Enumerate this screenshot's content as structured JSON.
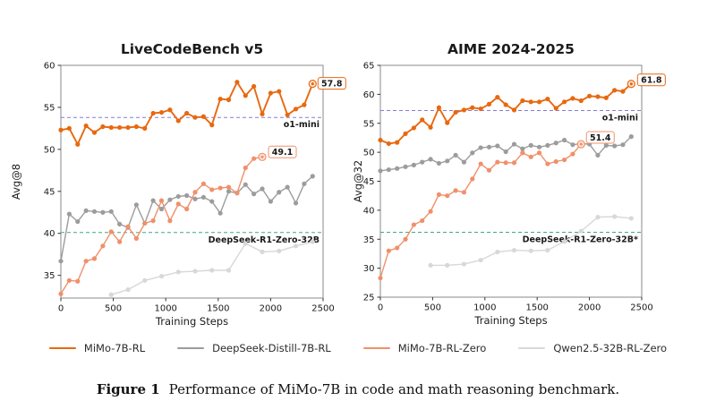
{
  "figure": {
    "caption_label": "Figure 1",
    "caption_text": "Performance of MiMo-7B in code and math reasoning benchmark."
  },
  "legend": {
    "items": [
      {
        "label": "MiMo-7B-RL",
        "color": "#e8680f"
      },
      {
        "label": "DeepSeek-Distill-7B-RL",
        "color": "#9c9c9c"
      },
      {
        "label": "MiMo-7B-RL-Zero",
        "color": "#f0906a"
      },
      {
        "label": "Qwen2.5-32B-RL-Zero",
        "color": "#d8d8d8"
      }
    ]
  },
  "chart_data": [
    {
      "id": "livecodebench",
      "type": "line",
      "title": "LiveCodeBench v5",
      "xlabel": "Training Steps",
      "ylabel": "Avg@8",
      "xlim": [
        0,
        2500
      ],
      "ylim": [
        32.3,
        60
      ],
      "xticks": [
        0,
        500,
        1000,
        1500,
        2000,
        2500
      ],
      "yticks": [
        35,
        40,
        45,
        50,
        55,
        60
      ],
      "grid": false,
      "legend_position": "none",
      "ref_lines": [
        {
          "label": "o1-mini",
          "value": 53.8,
          "color": "#8a7ad0"
        },
        {
          "label": "DeepSeek-R1-Zero-32B",
          "value": 40.1,
          "color": "#3cab7e"
        }
      ],
      "series": [
        {
          "name": "Qwen2.5-32B-RL-Zero",
          "color": "#d8d8d8",
          "x": [
            480,
            640,
            800,
            960,
            1120,
            1280,
            1440,
            1600,
            1760,
            1920,
            2080,
            2240,
            2400
          ],
          "values": [
            32.7,
            33.3,
            34.4,
            34.9,
            35.4,
            35.5,
            35.6,
            35.6,
            38.8,
            37.8,
            37.9,
            38.5,
            39.0
          ]
        },
        {
          "name": "DeepSeek-Distill-7B-RL",
          "color": "#9c9c9c",
          "x_start": 0,
          "x_step": 80,
          "values": [
            36.7,
            42.3,
            41.4,
            42.7,
            42.6,
            42.5,
            42.6,
            41.1,
            40.7,
            43.4,
            41.2,
            43.9,
            42.9,
            44.0,
            44.4,
            44.5,
            44.1,
            44.3,
            43.8,
            42.4,
            45.0,
            44.8,
            45.8,
            44.7,
            45.3,
            43.8,
            44.9,
            45.5,
            43.6,
            45.9,
            46.8
          ]
        },
        {
          "name": "MiMo-7B-RL-Zero",
          "color": "#f0906a",
          "x_start": 0,
          "x_step": 80,
          "values": [
            32.8,
            34.4,
            34.3,
            36.7,
            37.0,
            38.5,
            40.2,
            39.0,
            40.8,
            39.4,
            41.2,
            41.5,
            43.9,
            41.5,
            43.5,
            42.9,
            44.9,
            45.9,
            45.2,
            45.4,
            45.5,
            44.8,
            47.8,
            48.9,
            49.1
          ],
          "end_label": "49.1",
          "end_label_offset": [
            7,
            -12
          ]
        },
        {
          "name": "MiMo-7B-RL",
          "color": "#e8680f",
          "line_width": 1.9,
          "x_start": 0,
          "x_step": 80,
          "values": [
            52.3,
            52.5,
            50.6,
            52.8,
            52.0,
            52.7,
            52.6,
            52.6,
            52.6,
            52.7,
            52.5,
            54.3,
            54.4,
            54.7,
            53.4,
            54.3,
            53.8,
            53.9,
            52.9,
            56.0,
            55.9,
            58.0,
            56.4,
            57.5,
            54.2,
            56.7,
            56.9,
            54.1,
            54.8,
            55.3,
            57.8
          ],
          "end_label": "57.8",
          "end_label_offset": [
            6,
            -7
          ]
        }
      ]
    },
    {
      "id": "aime",
      "type": "line",
      "title": "AIME 2024-2025",
      "xlabel": "Training Steps",
      "ylabel": "Avg@32",
      "xlim": [
        0,
        2500
      ],
      "ylim": [
        25,
        65
      ],
      "xticks": [
        0,
        500,
        1000,
        1500,
        2000,
        2500
      ],
      "yticks": [
        25,
        30,
        35,
        40,
        45,
        50,
        55,
        60,
        65
      ],
      "grid": false,
      "legend_position": "none",
      "ref_lines": [
        {
          "label": "o1-mini",
          "value": 57.2,
          "color": "#8a7ad0"
        },
        {
          "label": "DeepSeek-R1-Zero-32B*",
          "value": 36.2,
          "color": "#3cab7e"
        }
      ],
      "series": [
        {
          "name": "Qwen2.5-32B-RL-Zero",
          "color": "#d8d8d8",
          "x": [
            480,
            640,
            800,
            960,
            1120,
            1280,
            1440,
            1600,
            1760,
            1920,
            2080,
            2240,
            2400
          ],
          "values": [
            30.5,
            30.5,
            30.7,
            31.4,
            32.8,
            33.1,
            33.0,
            33.1,
            34.6,
            36.4,
            38.8,
            38.9,
            38.6
          ]
        },
        {
          "name": "DeepSeek-Distill-7B-RL",
          "color": "#9c9c9c",
          "x_start": 0,
          "x_step": 80,
          "values": [
            46.8,
            47.0,
            47.2,
            47.5,
            47.8,
            48.3,
            48.8,
            48.1,
            48.5,
            49.5,
            48.3,
            49.9,
            50.8,
            50.9,
            51.1,
            50.1,
            51.4,
            50.6,
            51.2,
            50.9,
            51.2,
            51.6,
            52.1,
            51.3,
            51.5,
            51.4,
            49.5,
            51.2,
            51.1,
            51.3,
            52.7
          ]
        },
        {
          "name": "MiMo-7B-RL-Zero",
          "color": "#f0906a",
          "x_start": 0,
          "x_step": 80,
          "values": [
            28.3,
            33.0,
            33.5,
            35.0,
            37.5,
            38.2,
            39.8,
            42.7,
            42.5,
            43.4,
            43.1,
            45.4,
            48.0,
            46.9,
            48.3,
            48.2,
            48.2,
            49.9,
            49.2,
            49.9,
            48.0,
            48.4,
            48.7,
            49.7,
            51.4
          ],
          "end_label": "51.4",
          "end_label_offset": [
            6,
            -14
          ]
        },
        {
          "name": "MiMo-7B-RL",
          "color": "#e8680f",
          "line_width": 1.9,
          "x_start": 0,
          "x_step": 80,
          "values": [
            52.1,
            51.5,
            51.7,
            53.2,
            54.2,
            55.6,
            54.3,
            57.7,
            55.1,
            56.9,
            57.3,
            57.7,
            57.5,
            58.3,
            59.5,
            58.2,
            57.3,
            58.9,
            58.7,
            58.7,
            59.2,
            57.6,
            58.7,
            59.3,
            58.9,
            59.7,
            59.6,
            59.4,
            60.7,
            60.5,
            61.8
          ],
          "end_label": "61.8",
          "end_label_offset": [
            7,
            -11
          ]
        }
      ]
    }
  ]
}
